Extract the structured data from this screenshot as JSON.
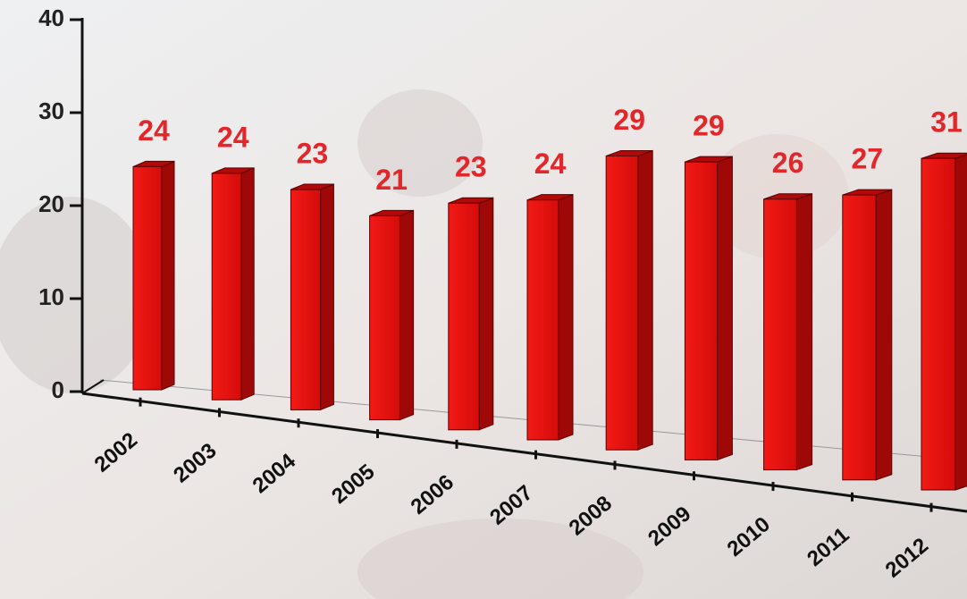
{
  "chart_data": {
    "type": "bar",
    "categories": [
      "2002",
      "2003",
      "2004",
      "2005",
      "2006",
      "2007",
      "2008",
      "2009",
      "2010",
      "2011",
      "2012"
    ],
    "values": [
      24,
      24,
      23,
      21,
      23,
      24,
      29,
      29,
      26,
      27,
      31
    ],
    "color": "#e0110f",
    "ylim": [
      0,
      40
    ],
    "yticks": [
      0,
      10,
      20,
      30,
      40
    ],
    "grid": false
  }
}
